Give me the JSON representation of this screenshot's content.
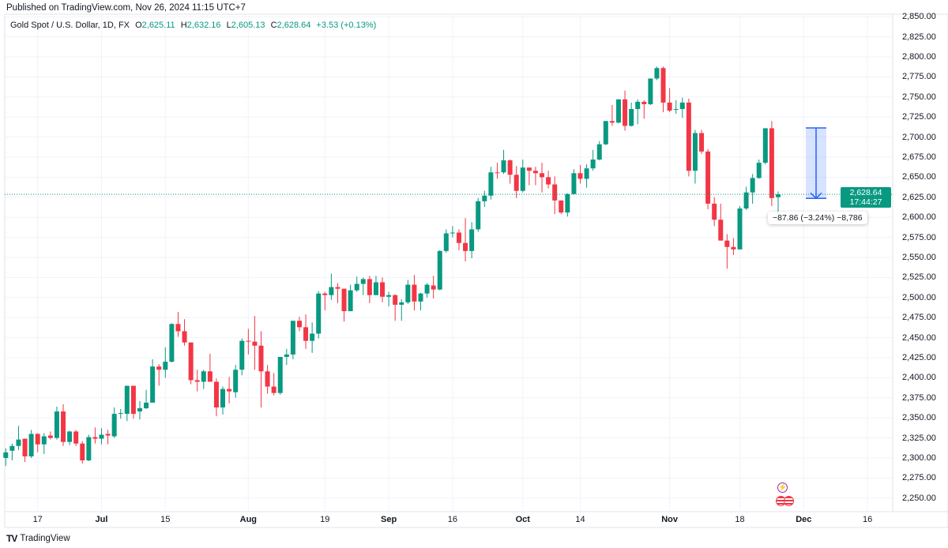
{
  "header": {
    "published": "Published on TradingView.com, Nov 26, 2024 11:15 UTC+7"
  },
  "legend": {
    "symbol": "Gold Spot / U.S. Dollar, 1D, FX",
    "o_label": "O",
    "o_value": "2,625.11",
    "h_label": "H",
    "h_value": "2,632.16",
    "l_label": "L",
    "l_value": "2,605.13",
    "c_label": "C",
    "c_value": "2,628.64",
    "change": "+3.53 (+0.13%)"
  },
  "last_price": {
    "price": "2,628.64",
    "countdown": "17:44:27"
  },
  "measure": {
    "label": "−87.86 (−3.24%) −8,786",
    "from": 2711.4,
    "to": 2623.6
  },
  "events": [
    {
      "icon": "lightning-icon"
    },
    {
      "icon": "us-flag-icon"
    }
  ],
  "brand": {
    "name": "TradingView"
  },
  "colors": {
    "up": "#089981",
    "down": "#f23645",
    "grid": "#f0f3fa",
    "measure": "#2962ff"
  },
  "chart_data": {
    "type": "candlestick",
    "title": "Gold Spot / U.S. Dollar, 1D, FX",
    "ylim": [
      2240,
      2855
    ],
    "grid": true,
    "y_ticks": [
      "2,850.00",
      "2,825.00",
      "2,800.00",
      "2,775.00",
      "2,750.00",
      "2,725.00",
      "2,700.00",
      "2,675.00",
      "2,650.00",
      "2,625.00",
      "2,600.00",
      "2,575.00",
      "2,550.00",
      "2,525.00",
      "2,500.00",
      "2,475.00",
      "2,450.00",
      "2,425.00",
      "2,400.00",
      "2,375.00",
      "2,350.00",
      "2,325.00",
      "2,300.00",
      "2,275.00",
      "2,250.00"
    ],
    "x_ticks": [
      {
        "label": "17",
        "date": "2024-06-17",
        "bold": false
      },
      {
        "label": "Jul",
        "date": "2024-07-01",
        "bold": true
      },
      {
        "label": "15",
        "date": "2024-07-15",
        "bold": false
      },
      {
        "label": "Aug",
        "date": "2024-08-01",
        "bold": true
      },
      {
        "label": "19",
        "date": "2024-08-19",
        "bold": false
      },
      {
        "label": "Sep",
        "date": "2024-09-02",
        "bold": true
      },
      {
        "label": "16",
        "date": "2024-09-16",
        "bold": false
      },
      {
        "label": "Oct",
        "date": "2024-10-01",
        "bold": true
      },
      {
        "label": "14",
        "date": "2024-10-14",
        "bold": false
      },
      {
        "label": "Nov",
        "date": "2024-11-01",
        "bold": true
      },
      {
        "label": "18",
        "date": "2024-11-18",
        "bold": false
      },
      {
        "label": "Dec",
        "date": "2024-12-02",
        "bold": true
      },
      {
        "label": "16",
        "date": "2024-12-16",
        "bold": false
      }
    ],
    "columns": [
      "date",
      "open",
      "high",
      "low",
      "close"
    ],
    "candles": [
      [
        "2024-06-10",
        2300,
        2312,
        2290,
        2307
      ],
      [
        "2024-06-11",
        2309,
        2318,
        2297,
        2315
      ],
      [
        "2024-06-12",
        2315,
        2340,
        2310,
        2323
      ],
      [
        "2024-06-13",
        2324,
        2324,
        2295,
        2302
      ],
      [
        "2024-06-14",
        2302,
        2335,
        2300,
        2330
      ],
      [
        "2024-06-17",
        2330,
        2331,
        2307,
        2317
      ],
      [
        "2024-06-18",
        2317,
        2331,
        2305,
        2327
      ],
      [
        "2024-06-19",
        2328,
        2333,
        2323,
        2325
      ],
      [
        "2024-06-20",
        2325,
        2364,
        2323,
        2358
      ],
      [
        "2024-06-21",
        2358,
        2367,
        2315,
        2320
      ],
      [
        "2024-06-24",
        2320,
        2334,
        2316,
        2333
      ],
      [
        "2024-06-25",
        2333,
        2335,
        2315,
        2318
      ],
      [
        "2024-06-26",
        2318,
        2321,
        2293,
        2297
      ],
      [
        "2024-06-27",
        2297,
        2329,
        2296,
        2326
      ],
      [
        "2024-06-28",
        2326,
        2338,
        2318,
        2324
      ],
      [
        "2024-07-01",
        2324,
        2337,
        2317,
        2329
      ],
      [
        "2024-07-02",
        2330,
        2335,
        2317,
        2328
      ],
      [
        "2024-07-03",
        2327,
        2363,
        2325,
        2355
      ],
      [
        "2024-07-04",
        2355,
        2361,
        2349,
        2356
      ],
      [
        "2024-07-05",
        2355,
        2390,
        2346,
        2390
      ],
      [
        "2024-07-08",
        2390,
        2390,
        2349,
        2355
      ],
      [
        "2024-07-09",
        2358,
        2371,
        2348,
        2362
      ],
      [
        "2024-07-10",
        2362,
        2385,
        2361,
        2369
      ],
      [
        "2024-07-11",
        2369,
        2423,
        2369,
        2414
      ],
      [
        "2024-07-12",
        2414,
        2417,
        2390,
        2410
      ],
      [
        "2024-07-15",
        2410,
        2438,
        2400,
        2420
      ],
      [
        "2024-07-16",
        2420,
        2468,
        2419,
        2467
      ],
      [
        "2024-07-17",
        2467,
        2482,
        2451,
        2458
      ],
      [
        "2024-07-18",
        2458,
        2473,
        2440,
        2444
      ],
      [
        "2024-07-19",
        2444,
        2444,
        2392,
        2397
      ],
      [
        "2024-07-22",
        2397,
        2410,
        2383,
        2395
      ],
      [
        "2024-07-23",
        2395,
        2410,
        2386,
        2408
      ],
      [
        "2024-07-24",
        2408,
        2430,
        2395,
        2395
      ],
      [
        "2024-07-25",
        2395,
        2399,
        2352,
        2363
      ],
      [
        "2024-07-26",
        2363,
        2389,
        2354,
        2386
      ],
      [
        "2024-07-29",
        2386,
        2401,
        2368,
        2383
      ],
      [
        "2024-07-30",
        2382,
        2416,
        2375,
        2410
      ],
      [
        "2024-07-31",
        2410,
        2449,
        2403,
        2446
      ],
      [
        "2024-08-01",
        2446,
        2461,
        2429,
        2445
      ],
      [
        "2024-08-02",
        2445,
        2477,
        2410,
        2440
      ],
      [
        "2024-08-05",
        2440,
        2458,
        2363,
        2408
      ],
      [
        "2024-08-06",
        2408,
        2416,
        2380,
        2389
      ],
      [
        "2024-08-07",
        2389,
        2406,
        2378,
        2381
      ],
      [
        "2024-08-08",
        2381,
        2426,
        2379,
        2426
      ],
      [
        "2024-08-09",
        2426,
        2436,
        2416,
        2429
      ],
      [
        "2024-08-12",
        2429,
        2471,
        2423,
        2471
      ],
      [
        "2024-08-13",
        2471,
        2476,
        2458,
        2463
      ],
      [
        "2024-08-14",
        2463,
        2479,
        2436,
        2446
      ],
      [
        "2024-08-15",
        2446,
        2469,
        2431,
        2455
      ],
      [
        "2024-08-16",
        2455,
        2508,
        2449,
        2505
      ],
      [
        "2024-08-19",
        2505,
        2507,
        2484,
        2503
      ],
      [
        "2024-08-20",
        2503,
        2530,
        2497,
        2513
      ],
      [
        "2024-08-21",
        2513,
        2518,
        2493,
        2511
      ],
      [
        "2024-08-22",
        2511,
        2511,
        2470,
        2483
      ],
      [
        "2024-08-23",
        2483,
        2516,
        2483,
        2509
      ],
      [
        "2024-08-26",
        2509,
        2526,
        2507,
        2517
      ],
      [
        "2024-08-27",
        2517,
        2525,
        2503,
        2523
      ],
      [
        "2024-08-28",
        2523,
        2527,
        2493,
        2503
      ],
      [
        "2024-08-29",
        2503,
        2527,
        2503,
        2519
      ],
      [
        "2024-08-30",
        2519,
        2525,
        2494,
        2501
      ],
      [
        "2024-09-02",
        2501,
        2507,
        2489,
        2503
      ],
      [
        "2024-09-03",
        2503,
        2504,
        2471,
        2491
      ],
      [
        "2024-09-04",
        2491,
        2498,
        2471,
        2494
      ],
      [
        "2024-09-05",
        2494,
        2522,
        2492,
        2516
      ],
      [
        "2024-09-06",
        2516,
        2528,
        2484,
        2495
      ],
      [
        "2024-09-09",
        2495,
        2506,
        2484,
        2505
      ],
      [
        "2024-09-10",
        2505,
        2518,
        2500,
        2516
      ],
      [
        "2024-09-11",
        2515,
        2527,
        2499,
        2510
      ],
      [
        "2024-09-12",
        2510,
        2559,
        2509,
        2558
      ],
      [
        "2024-09-13",
        2558,
        2585,
        2556,
        2580
      ],
      [
        "2024-09-16",
        2580,
        2589,
        2575,
        2581
      ],
      [
        "2024-09-17",
        2581,
        2585,
        2559,
        2568
      ],
      [
        "2024-09-18",
        2568,
        2599,
        2545,
        2558
      ],
      [
        "2024-09-19",
        2558,
        2594,
        2549,
        2585
      ],
      [
        "2024-09-20",
        2585,
        2624,
        2582,
        2620
      ],
      [
        "2024-09-23",
        2620,
        2633,
        2613,
        2627
      ],
      [
        "2024-09-24",
        2627,
        2663,
        2622,
        2656
      ],
      [
        "2024-09-25",
        2656,
        2668,
        2648,
        2655
      ],
      [
        "2024-09-26",
        2656,
        2684,
        2654,
        2671
      ],
      [
        "2024-09-27",
        2671,
        2672,
        2642,
        2653
      ],
      [
        "2024-09-30",
        2653,
        2664,
        2624,
        2633
      ],
      [
        "2024-10-01",
        2633,
        2672,
        2631,
        2662
      ],
      [
        "2024-10-02",
        2662,
        2662,
        2640,
        2658
      ],
      [
        "2024-10-03",
        2658,
        2663,
        2640,
        2655
      ],
      [
        "2024-10-04",
        2655,
        2668,
        2631,
        2650
      ],
      [
        "2024-10-07",
        2650,
        2658,
        2636,
        2641
      ],
      [
        "2024-10-08",
        2641,
        2651,
        2604,
        2621
      ],
      [
        "2024-10-09",
        2621,
        2621,
        2604,
        2606
      ],
      [
        "2024-10-10",
        2606,
        2630,
        2601,
        2629
      ],
      [
        "2024-10-11",
        2629,
        2660,
        2628,
        2655
      ],
      [
        "2024-10-14",
        2655,
        2665,
        2642,
        2648
      ],
      [
        "2024-10-15",
        2648,
        2666,
        2637,
        2661
      ],
      [
        "2024-10-16",
        2661,
        2684,
        2658,
        2672
      ],
      [
        "2024-10-17",
        2672,
        2695,
        2671,
        2691
      ],
      [
        "2024-10-18",
        2691,
        2720,
        2690,
        2720
      ],
      [
        "2024-10-21",
        2720,
        2740,
        2714,
        2718
      ],
      [
        "2024-10-22",
        2718,
        2747,
        2717,
        2747
      ],
      [
        "2024-10-23",
        2747,
        2758,
        2708,
        2714
      ],
      [
        "2024-10-24",
        2714,
        2743,
        2713,
        2735
      ],
      [
        "2024-10-25",
        2735,
        2747,
        2716,
        2744
      ],
      [
        "2024-10-28",
        2744,
        2746,
        2723,
        2741
      ],
      [
        "2024-10-29",
        2741,
        2773,
        2740,
        2773
      ],
      [
        "2024-10-30",
        2773,
        2788,
        2771,
        2786
      ],
      [
        "2024-10-31",
        2786,
        2788,
        2731,
        2743
      ],
      [
        "2024-11-01",
        2743,
        2761,
        2731,
        2733
      ],
      [
        "2024-11-04",
        2734,
        2746,
        2729,
        2735
      ],
      [
        "2024-11-05",
        2735,
        2749,
        2724,
        2743
      ],
      [
        "2024-11-06",
        2743,
        2748,
        2651,
        2658
      ],
      [
        "2024-11-07",
        2658,
        2709,
        2642,
        2705
      ],
      [
        "2024-11-08",
        2705,
        2709,
        2679,
        2682
      ],
      [
        "2024-11-11",
        2682,
        2685,
        2610,
        2617
      ],
      [
        "2024-11-12",
        2617,
        2625,
        2589,
        2597
      ],
      [
        "2024-11-13",
        2597,
        2617,
        2571,
        2571
      ],
      [
        "2024-11-14",
        2571,
        2579,
        2536,
        2563
      ],
      [
        "2024-11-15",
        2563,
        2574,
        2553,
        2560
      ],
      [
        "2024-11-18",
        2560,
        2614,
        2560,
        2611
      ],
      [
        "2024-11-19",
        2611,
        2638,
        2609,
        2631
      ],
      [
        "2024-11-20",
        2631,
        2654,
        2617,
        2649
      ],
      [
        "2024-11-21",
        2649,
        2672,
        2648,
        2668
      ],
      [
        "2024-11-22",
        2668,
        2711,
        2666,
        2711
      ],
      [
        "2024-11-25",
        2711,
        2720,
        2614,
        2624
      ],
      [
        "2024-11-26",
        2625.11,
        2632.16,
        2605.13,
        2628.64
      ]
    ]
  }
}
